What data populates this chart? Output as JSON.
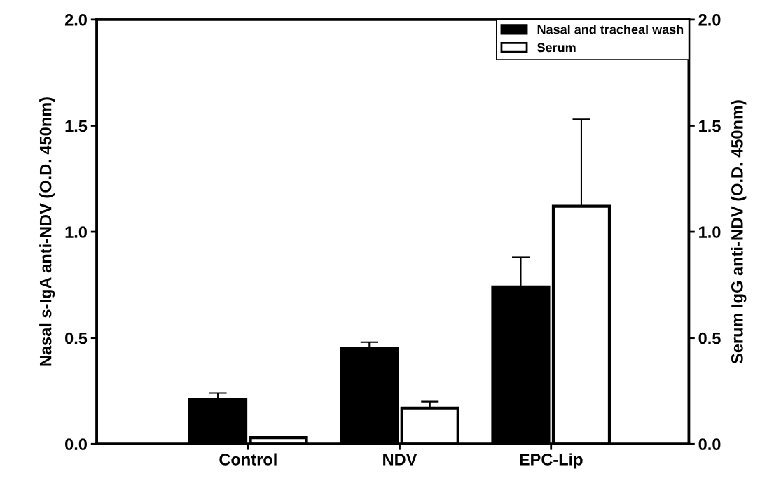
{
  "chart_data": {
    "type": "bar",
    "categories": [
      "Control",
      "NDV",
      "EPC-Lip"
    ],
    "ylabel": "Nasal s-IgA anti-NDV (O.D. 450nm)",
    "y2label": "Serum IgG anti-NDV (O.D. 450nm)",
    "series": [
      {
        "name": "Nasal and tracheal wash",
        "color": "#000000",
        "values": [
          0.21,
          0.45,
          0.74
        ],
        "errors": [
          [
            0.21,
            0.24
          ],
          [
            0.45,
            0.48
          ],
          [
            0.74,
            0.88
          ]
        ]
      },
      {
        "name": "Serum",
        "color": "#ffffff",
        "axis": "y2",
        "values": [
          0.03,
          0.17,
          1.12
        ],
        "errors": [
          null,
          [
            0.17,
            0.2
          ],
          [
            1.12,
            1.53
          ]
        ]
      }
    ],
    "ylim": [
      0,
      2
    ],
    "yticks": [
      {
        "value": 0,
        "label": "0.0"
      },
      {
        "value": 0.5,
        "label": "0.5"
      },
      {
        "value": 1,
        "label": "1.0"
      },
      {
        "value": 1.5,
        "label": "1.5"
      },
      {
        "value": 2,
        "label": "2.0"
      }
    ],
    "y2lim": [
      0,
      2
    ],
    "y2ticks": [
      {
        "value": 0,
        "label": "0.0"
      },
      {
        "value": 0.5,
        "label": "0.5"
      },
      {
        "value": 1,
        "label": "1.0"
      },
      {
        "value": 1.5,
        "label": "1.5"
      },
      {
        "value": 2,
        "label": "2.0"
      }
    ],
    "legend": "top right",
    "grid": false
  }
}
